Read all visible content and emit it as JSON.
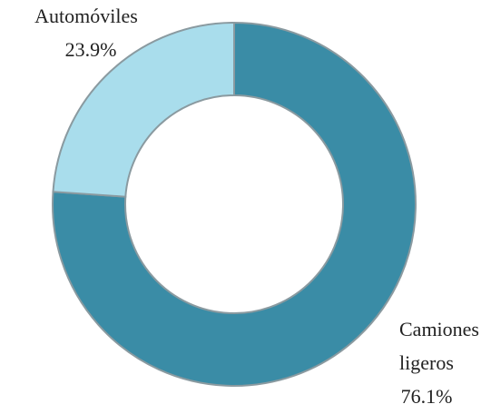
{
  "chart_data": {
    "type": "donut",
    "categories": [
      "Camiones ligeros",
      "Automóviles"
    ],
    "values": [
      76.1,
      23.9
    ],
    "value_labels": [
      "76.1%",
      "23.9%"
    ],
    "colors": [
      "#3a8ca6",
      "#a9ddec"
    ]
  }
}
